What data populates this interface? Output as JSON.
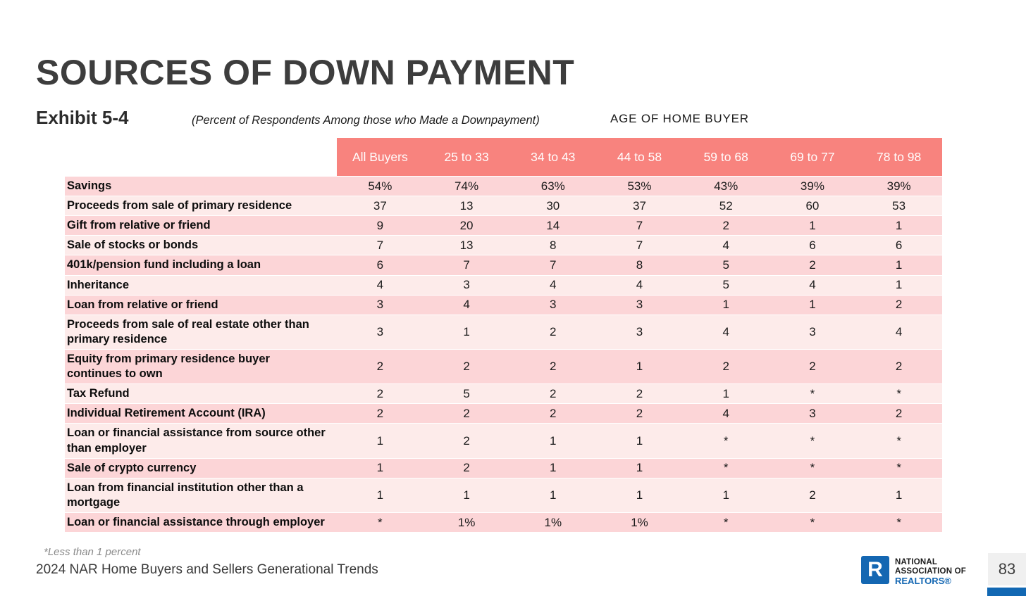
{
  "page": {
    "title": "SOURCES OF DOWN PAYMENT",
    "exhibit_label": "Exhibit 5-4",
    "subtitle": "(Percent of Respondents Among those who Made a Downpayment)",
    "column_group_label": "AGE OF HOME BUYER",
    "footnote": "*Less than 1 percent",
    "source": "2024 NAR Home Buyers and Sellers Generational Trends",
    "page_number": "83"
  },
  "logo": {
    "letter": "R",
    "line1": "NATIONAL",
    "line2": "ASSOCIATION OF",
    "line3": "REALTORS®"
  },
  "colors": {
    "header_bg": "#F8837E",
    "row_dark": "#FCD5D7",
    "row_light": "#FDEBEA",
    "nar_blue": "#1467B2",
    "title_text": "#3D3D3D"
  },
  "chart_data": {
    "type": "table",
    "title": "SOURCES OF DOWN PAYMENT",
    "subtitle": "(Percent of Respondents Among those who Made a Downpayment)",
    "column_group_label": "AGE OF HOME BUYER",
    "columns": [
      "All Buyers",
      "25 to 33",
      "34 to 43",
      "44 to 58",
      "59 to 68",
      "69 to 77",
      "78 to 98"
    ],
    "rows": [
      {
        "label": "Savings",
        "values": [
          "54%",
          "74%",
          "63%",
          "53%",
          "43%",
          "39%",
          "39%"
        ]
      },
      {
        "label": "Proceeds from sale of primary residence",
        "values": [
          "37",
          "13",
          "30",
          "37",
          "52",
          "60",
          "53"
        ]
      },
      {
        "label": "Gift from relative or friend",
        "values": [
          "9",
          "20",
          "14",
          "7",
          "2",
          "1",
          "1"
        ]
      },
      {
        "label": "Sale of stocks or bonds",
        "values": [
          "7",
          "13",
          "8",
          "7",
          "4",
          "6",
          "6"
        ]
      },
      {
        "label": "401k/pension fund including a loan",
        "values": [
          "6",
          "7",
          "7",
          "8",
          "5",
          "2",
          "1"
        ]
      },
      {
        "label": "Inheritance",
        "values": [
          "4",
          "3",
          "4",
          "4",
          "5",
          "4",
          "1"
        ]
      },
      {
        "label": "Loan from relative or friend",
        "values": [
          "3",
          "4",
          "3",
          "3",
          "1",
          "1",
          "2"
        ]
      },
      {
        "label": "Proceeds from sale of real estate other than primary residence",
        "values": [
          "3",
          "1",
          "2",
          "3",
          "4",
          "3",
          "4"
        ]
      },
      {
        "label": "Equity from primary residence buyer continues to own",
        "values": [
          "2",
          "2",
          "2",
          "1",
          "2",
          "2",
          "2"
        ]
      },
      {
        "label": "Tax Refund",
        "values": [
          "2",
          "5",
          "2",
          "2",
          "1",
          "*",
          "*"
        ]
      },
      {
        "label": "Individual Retirement Account (IRA)",
        "values": [
          "2",
          "2",
          "2",
          "2",
          "4",
          "3",
          "2"
        ]
      },
      {
        "label": "Loan or financial assistance from source other than employer",
        "values": [
          "1",
          "2",
          "1",
          "1",
          "*",
          "*",
          "*"
        ]
      },
      {
        "label": "Sale of crypto currency",
        "values": [
          "1",
          "2",
          "1",
          "1",
          "*",
          "*",
          "*"
        ]
      },
      {
        "label": "Loan from financial institution other than a mortgage",
        "values": [
          "1",
          "1",
          "1",
          "1",
          "1",
          "2",
          "1"
        ]
      },
      {
        "label": "Loan or financial assistance through employer",
        "values": [
          "*",
          "1%",
          "1%",
          "1%",
          "*",
          "*",
          "*"
        ]
      }
    ],
    "footnote": "*Less than 1 percent"
  }
}
